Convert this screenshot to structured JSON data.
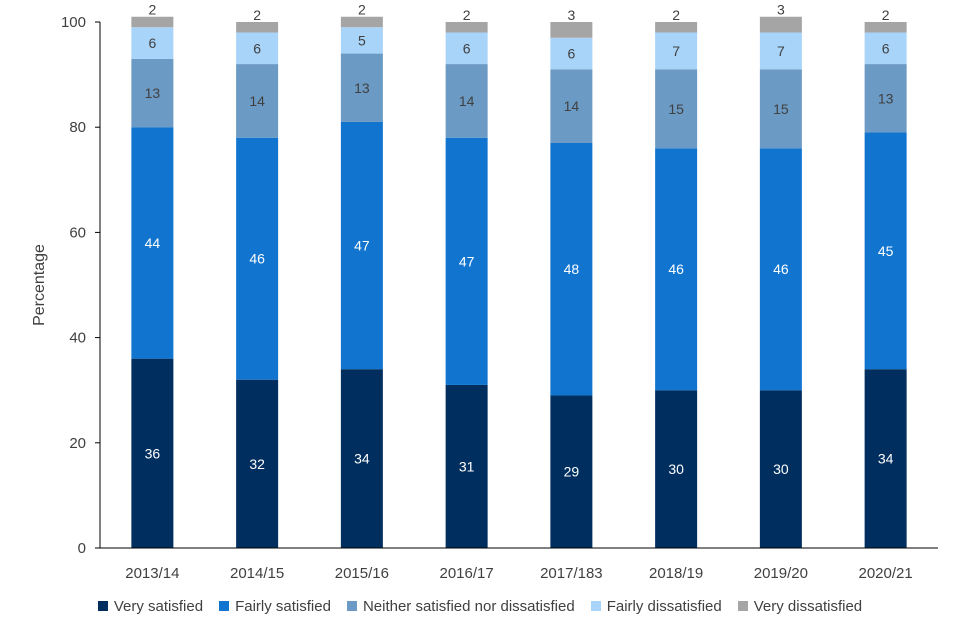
{
  "chart_data": {
    "type": "bar",
    "stacked": true,
    "ylabel": "Percentage",
    "xlabel": "",
    "title": "",
    "ylim": [
      0,
      100
    ],
    "yticks": [
      0,
      20,
      40,
      60,
      80,
      100
    ],
    "grid": false,
    "legend_position": "bottom",
    "categories": [
      "2013/14",
      "2014/15",
      "2015/16",
      "2016/17",
      "2017/183",
      "2018/19",
      "2019/20",
      "2020/21"
    ],
    "series": [
      {
        "name": "Very satisfied",
        "color": "#002F5F",
        "label_color": "#ffffff",
        "values": [
          36,
          32,
          34,
          31,
          29,
          30,
          30,
          34
        ]
      },
      {
        "name": "Fairly satisfied",
        "color": "#1175CF",
        "label_color": "#ffffff",
        "values": [
          44,
          46,
          47,
          47,
          48,
          46,
          46,
          45
        ]
      },
      {
        "name": "Neither satisfied nor dissatisfied",
        "color": "#6B9AC4",
        "label_color": "#404040",
        "values": [
          13,
          14,
          13,
          14,
          14,
          15,
          15,
          13
        ]
      },
      {
        "name": "Fairly dissatisfied",
        "color": "#A8D4FA",
        "label_color": "#404040",
        "values": [
          6,
          6,
          5,
          6,
          6,
          7,
          7,
          6
        ]
      },
      {
        "name": "Very dissatisfied",
        "color": "#A5A5A5",
        "label_color": "#404040",
        "values": [
          2,
          2,
          2,
          2,
          3,
          2,
          3,
          2
        ]
      }
    ]
  }
}
